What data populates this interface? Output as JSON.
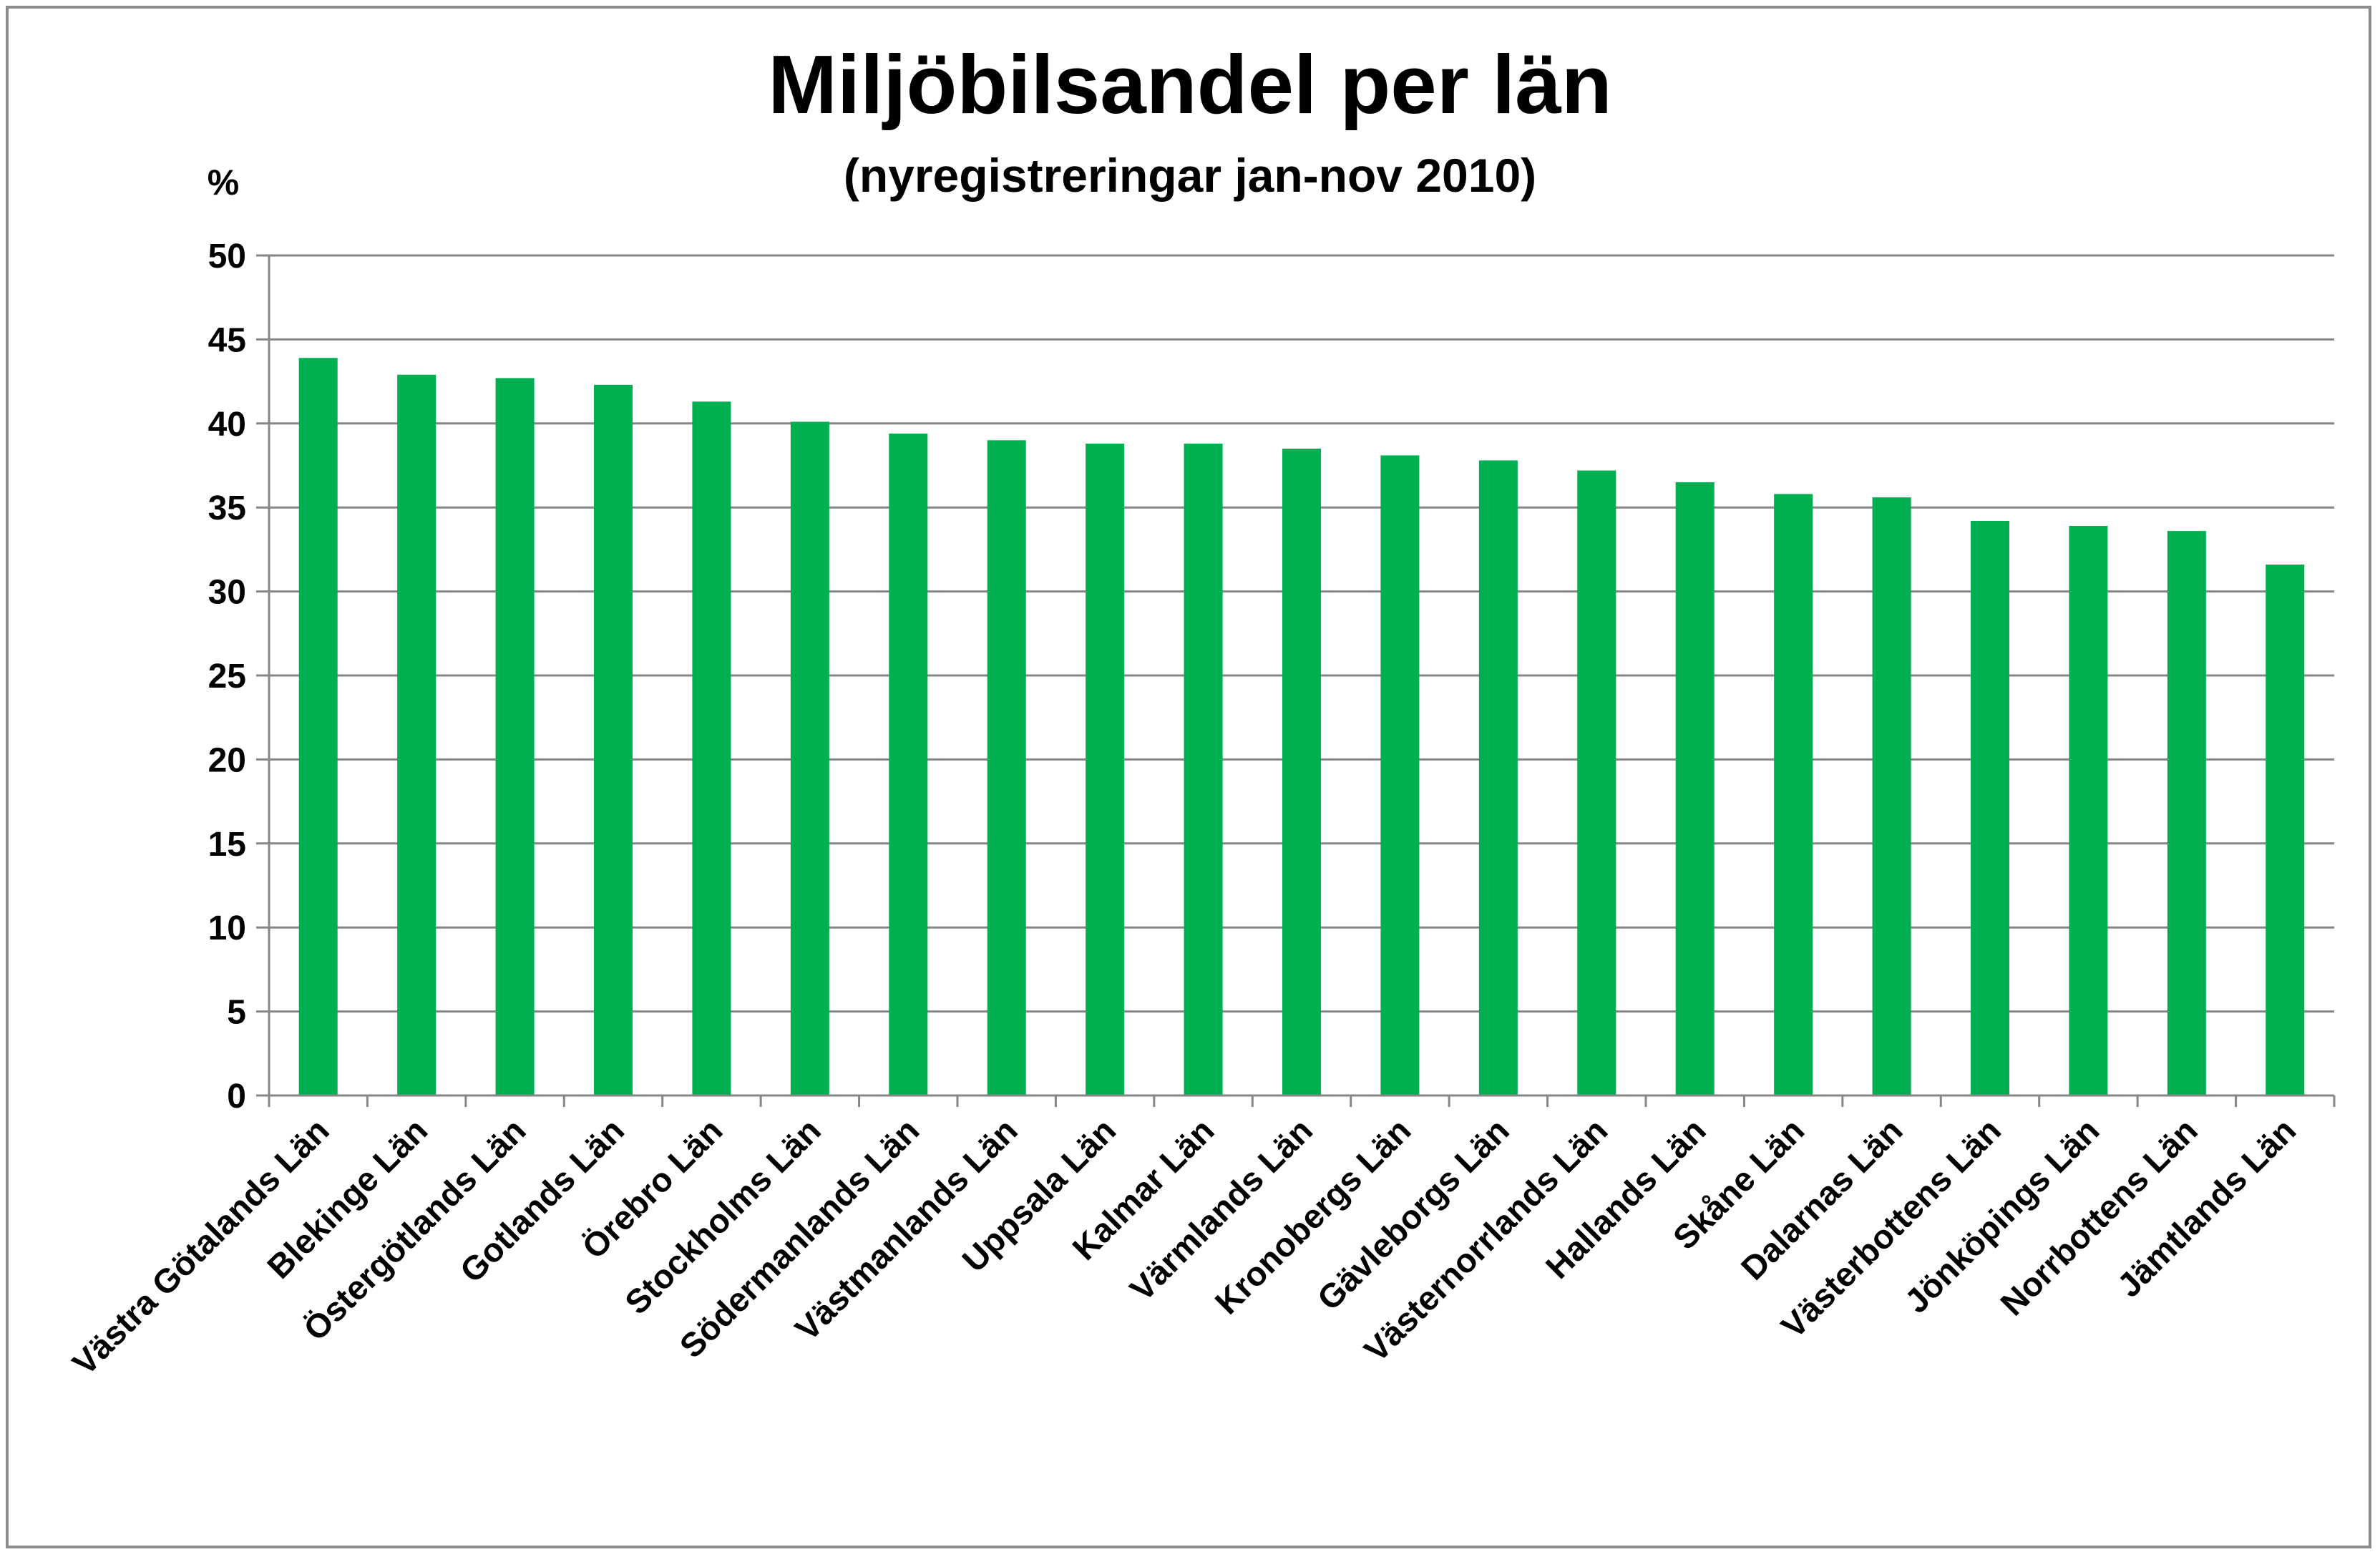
{
  "chart_data": {
    "type": "bar",
    "title": "Miljöbilsandel per län",
    "subtitle": "(nyregistreringar jan-nov 2010)",
    "ylabel": "%",
    "ylim": [
      0,
      50
    ],
    "yticks": [
      0,
      5,
      10,
      15,
      20,
      25,
      30,
      35,
      40,
      45,
      50
    ],
    "grid": true,
    "legend": "none",
    "categories": [
      "Västra Götalands Län",
      "Blekinge Län",
      "Östergötlands Län",
      "Gotlands Län",
      "Örebro Län",
      "Stockholms Län",
      "Södermanlands Län",
      "Västmanlands Län",
      "Uppsala Län",
      "Kalmar Län",
      "Värmlands Län",
      "Kronobergs Län",
      "Gävleborgs Län",
      "Västernorrlands Län",
      "Hallands Län",
      "Skåne Län",
      "Dalarnas Län",
      "Västerbottens Län",
      "Jönköpings Län",
      "Norrbottens Län",
      "Jämtlands Län"
    ],
    "values": [
      43.9,
      42.9,
      42.7,
      42.3,
      41.3,
      40.1,
      39.4,
      39.0,
      38.8,
      38.8,
      38.5,
      38.1,
      37.8,
      37.2,
      36.5,
      35.8,
      35.6,
      34.2,
      33.9,
      33.6,
      31.6
    ],
    "colors": {
      "bar": "#00b050",
      "grid": "#868686",
      "axis": "#868686",
      "frame": "#8c8c8c"
    }
  }
}
